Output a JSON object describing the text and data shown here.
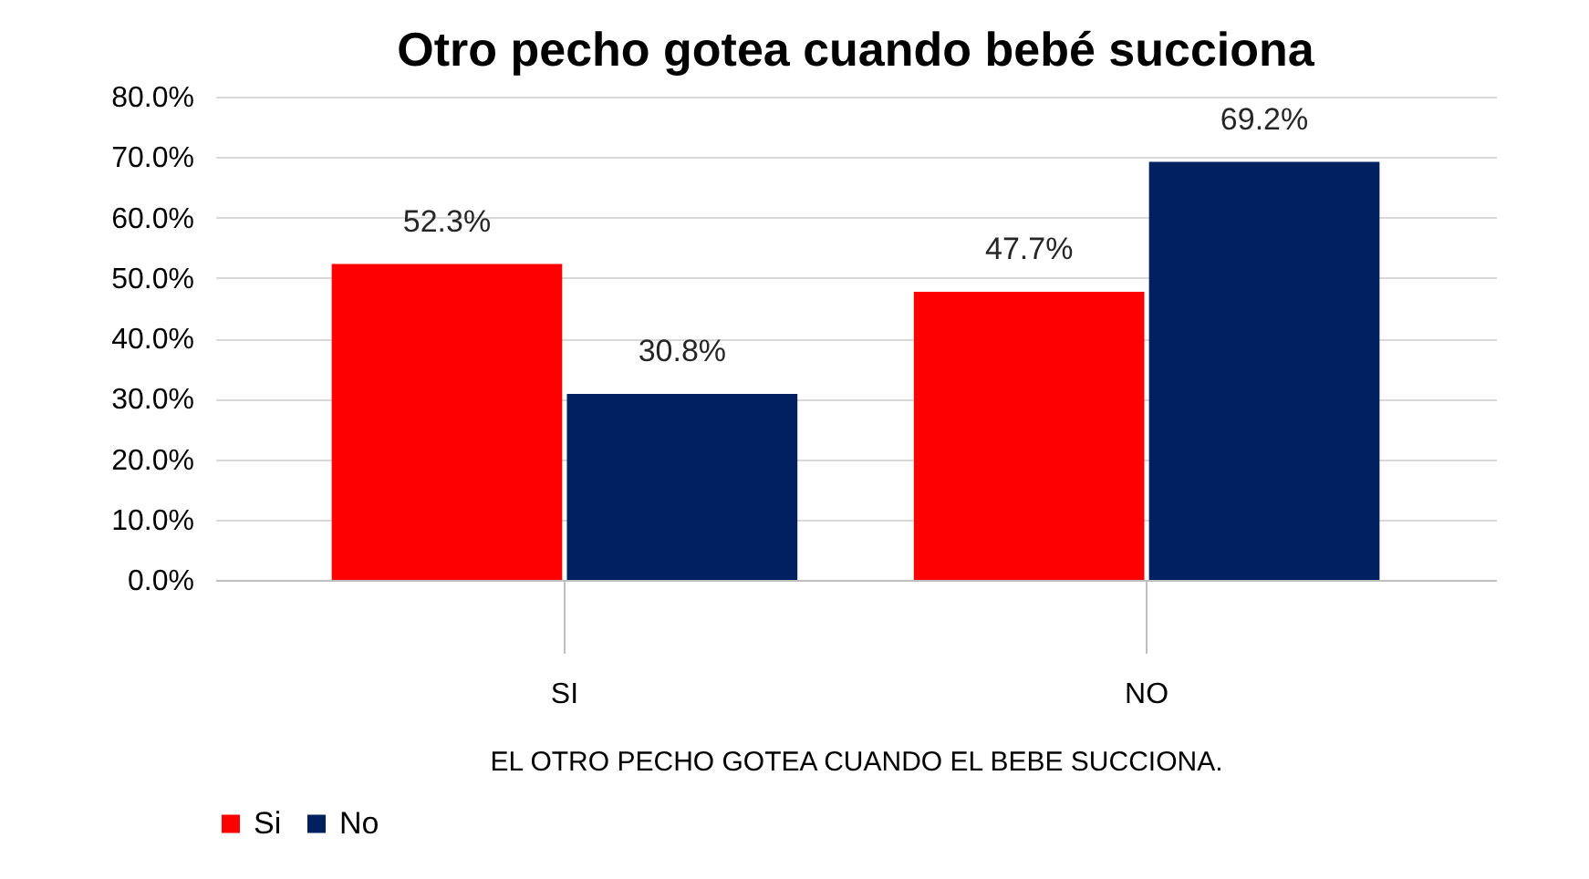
{
  "chart_data": {
    "type": "bar",
    "title": "Otro pecho gotea cuando bebé succiona",
    "xlabel": "EL OTRO PECHO GOTEA CUANDO EL BEBE SUCCIONA.",
    "categories": [
      "SI",
      "NO"
    ],
    "series": [
      {
        "name": "Si",
        "color": "#ff0000",
        "values": [
          52.3,
          47.7
        ],
        "value_labels": [
          "52.3%",
          "47.7%"
        ]
      },
      {
        "name": "No",
        "color": "#002060",
        "values": [
          30.8,
          69.2
        ],
        "value_labels": [
          "30.8%",
          "69.2%"
        ]
      }
    ],
    "ylim": [
      0,
      80
    ],
    "yticks": [
      {
        "value": 0,
        "label": "0.0%"
      },
      {
        "value": 10,
        "label": "10.0%"
      },
      {
        "value": 20,
        "label": "20.0%"
      },
      {
        "value": 30,
        "label": "30.0%"
      },
      {
        "value": 40,
        "label": "40.0%"
      },
      {
        "value": 50,
        "label": "50.0%"
      },
      {
        "value": 60,
        "label": "60.0%"
      },
      {
        "value": 70,
        "label": "70.0%"
      },
      {
        "value": 80,
        "label": "80.0%"
      }
    ],
    "grid": "y",
    "legend": "bottom"
  }
}
